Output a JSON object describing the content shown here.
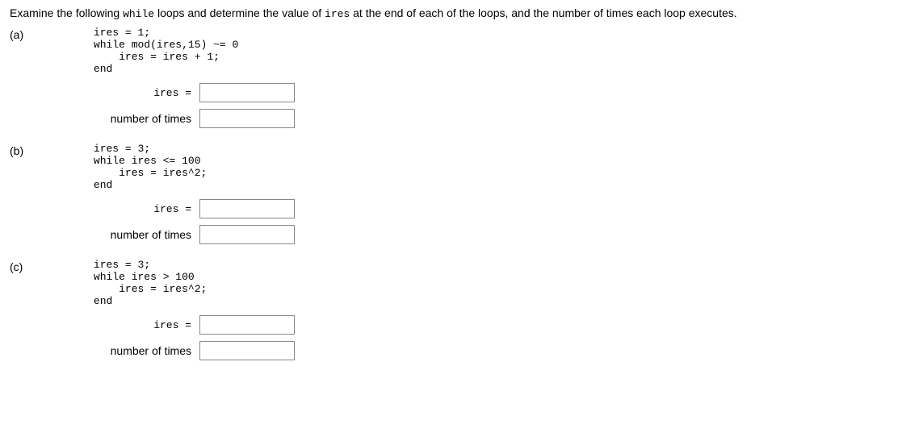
{
  "intro": {
    "prefix": "Examine the following ",
    "kw1": "while",
    "mid1": " loops and determine the value of ",
    "kw2": "ires",
    "suffix": " at the end of each of the loops, and the number of times each loop executes."
  },
  "parts": {
    "a": {
      "label": "(a)",
      "line1": "ires = 1;",
      "line2": "while mod(ires,15) ~= 0",
      "line3": "    ires = ires + 1;",
      "line4": "end",
      "ires_label": "ires =",
      "times_label": "number of times",
      "ires_value": "",
      "times_value": ""
    },
    "b": {
      "label": "(b)",
      "line1": "ires = 3;",
      "line2": "while ires <= 100",
      "line3": "    ires = ires^2;",
      "line4": "end",
      "ires_label": "ires =",
      "times_label": "number of times",
      "ires_value": "",
      "times_value": ""
    },
    "c": {
      "label": "(c)",
      "line1": "ires = 3;",
      "line2": "while ires > 100",
      "line3": "    ires = ires^2;",
      "line4": "end",
      "ires_label": "ires =",
      "times_label": "number of times",
      "ires_value": "",
      "times_value": ""
    }
  }
}
